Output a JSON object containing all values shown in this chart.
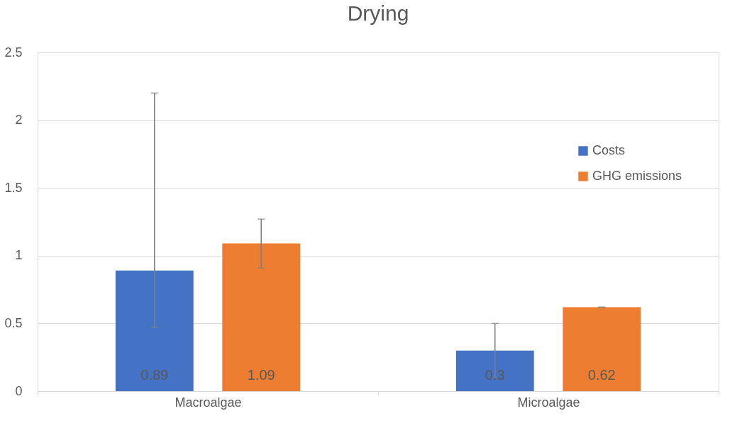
{
  "chart_data": {
    "type": "bar",
    "title": "Drying",
    "categories": [
      "Macroalgae",
      "Microalgae"
    ],
    "series": [
      {
        "name": "Costs",
        "color": "#4472c4",
        "values": [
          0.89,
          0.3
        ],
        "errors": [
          [
            0.47,
            2.2
          ],
          [
            0.1,
            0.5
          ]
        ]
      },
      {
        "name": "GHG emissions",
        "color": "#ed7d31",
        "values": [
          1.09,
          0.62
        ],
        "errors": [
          [
            0.91,
            1.27
          ],
          [
            0.62,
            0.62
          ]
        ]
      }
    ],
    "ylim": [
      0,
      2.5
    ],
    "yticks": [
      0,
      0.5,
      1,
      1.5,
      2,
      2.5
    ],
    "grid": "y",
    "legend": "right",
    "data_labels": true
  }
}
